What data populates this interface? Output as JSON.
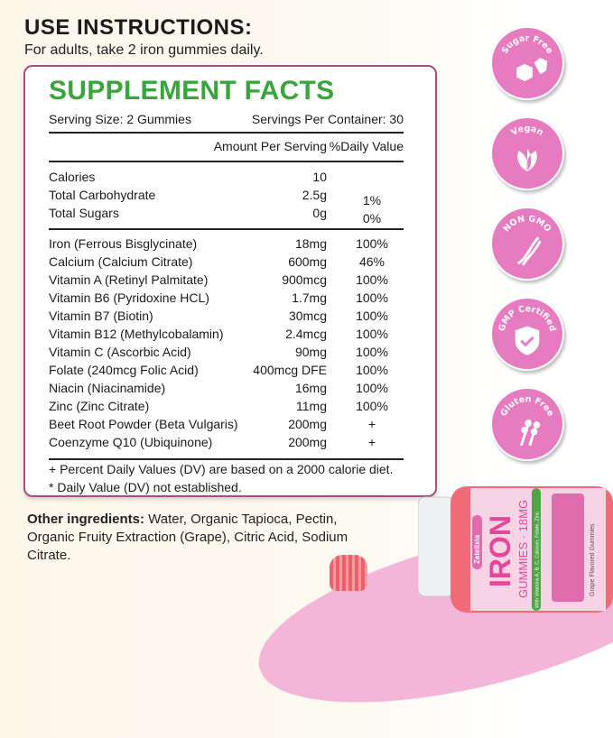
{
  "instructions": {
    "heading": "USE INSTRUCTIONS:",
    "text": "For adults, take 2 iron gummies daily."
  },
  "facts": {
    "title": "SUPPLEMENT FACTS",
    "serving_size": "Serving Size: 2 Gummies",
    "servings_per_container": "Servings Per Container: 30",
    "col_amount": "Amount Per Serving",
    "col_dv": "%Daily Value",
    "basic": [
      {
        "name": "Calories",
        "amount": "10",
        "dv": ""
      },
      {
        "name": "Total Carbohydrate",
        "amount": "2.5g",
        "dv": "1%"
      },
      {
        "name": "Total Sugars",
        "amount": "0g",
        "dv": "0%"
      }
    ],
    "nutrients": [
      {
        "name": "Iron (Ferrous Bisglycinate)",
        "amount": "18mg",
        "dv": "100%"
      },
      {
        "name": "Calcium (Calcium Citrate)",
        "amount": "600mg",
        "dv": "46%"
      },
      {
        "name": "Vitamin A (Retinyl Palmitate)",
        "amount": "900mcg",
        "dv": "100%"
      },
      {
        "name": "Vitamin B6 (Pyridoxine HCL)",
        "amount": "1.7mg",
        "dv": "100%"
      },
      {
        "name": "Vitamin B7 (Biotin)",
        "amount": "30mcg",
        "dv": "100%"
      },
      {
        "name": "Vitamin B12 (Methylcobalamin)",
        "amount": "2.4mcg",
        "dv": "100%"
      },
      {
        "name": "Vitamin C (Ascorbic Acid)",
        "amount": "90mg",
        "dv": "100%"
      },
      {
        "name": "Folate (240mcg Folic Acid)",
        "amount": "400mcg DFE",
        "dv": "100%"
      },
      {
        "name": "Niacin (Niacinamide)",
        "amount": "16mg",
        "dv": "100%"
      },
      {
        "name": "Zinc (Zinc Citrate)",
        "amount": "11mg",
        "dv": "100%"
      },
      {
        "name": "Beet Root Powder (Beta Vulgaris)",
        "amount": "200mg",
        "dv": "+"
      },
      {
        "name": "Coenzyme Q10 (Ubiquinone)",
        "amount": "200mg",
        "dv": "+"
      }
    ],
    "footnote1": "+ Percent Daily Values (DV) are based on a 2000 calorie diet.",
    "footnote2": "* Daily Value (DV) not established."
  },
  "other_ingredients": {
    "label": "Other ingredients:",
    "text": " Water, Organic Tapioca, Pectin, Organic Fruity Extraction (Grape), Citric Acid, Sodium Citrate."
  },
  "badges": [
    {
      "label": "Sugar Free",
      "icon": "sugar-cubes-icon"
    },
    {
      "label": "Vegan",
      "icon": "leaves-icon"
    },
    {
      "label": "NON GMO",
      "icon": "dna-icon"
    },
    {
      "label": "GMP Certified",
      "icon": "shield-check-icon"
    },
    {
      "label": "Gluten Free",
      "icon": "wheat-icon"
    }
  ],
  "bottle": {
    "brand": "Zetelixia",
    "name": "IRON",
    "subtitle": "GUMMIES · 18MG",
    "tagline": "With Vitamins A, B, C, Calcium, Folate, Zinc",
    "flavor": "Grape Flavored Gummies"
  },
  "colors": {
    "accent_green": "#3aa53c",
    "badge_pink": "#e77bc0",
    "border": "#a2507f"
  }
}
